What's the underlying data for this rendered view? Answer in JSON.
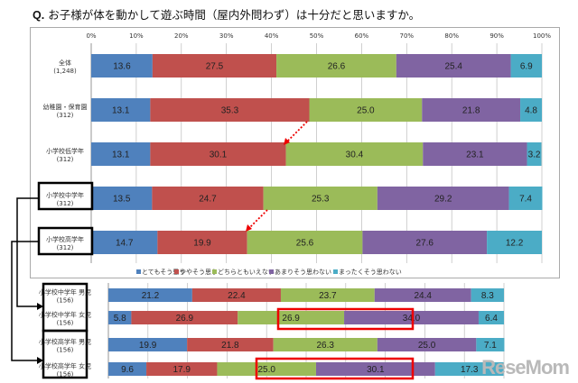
{
  "title_prefix": "Q.",
  "title": "お子様が体を動かして遊ぶ時間（屋内外問わず）は十分だと思いますか。",
  "watermark": "ReseMom",
  "colors": [
    "#4f81bd",
    "#c0504d",
    "#9bbb59",
    "#8064a2",
    "#4bacc6"
  ],
  "chart_data": [
    {
      "type": "bar",
      "orientation": "horizontal",
      "stacked": true,
      "xlim": [
        0,
        100
      ],
      "tick_labels": [
        "0%",
        "10%",
        "20%",
        "30%",
        "40%",
        "50%",
        "60%",
        "70%",
        "80%",
        "90%",
        "100%"
      ],
      "grid": true,
      "legend_position": "bottom",
      "legend": [
        "とてもそう思う",
        "ややそう思う",
        "どちらともいえない",
        "あまりそう思わない",
        "まったくそう思わない"
      ],
      "categories": [
        {
          "label": "全体",
          "n": "(1,248)"
        },
        {
          "label": "幼稚園・保育園",
          "n": "(312)"
        },
        {
          "label": "小学校低学年",
          "n": "(312)"
        },
        {
          "label": "小学校中学年",
          "n": "(312)"
        },
        {
          "label": "小学校高学年",
          "n": "(312)"
        }
      ],
      "values": [
        [
          13.6,
          27.5,
          26.6,
          25.4,
          6.9
        ],
        [
          13.1,
          35.3,
          25.0,
          21.8,
          4.8
        ],
        [
          13.1,
          30.1,
          30.4,
          23.1,
          3.2
        ],
        [
          13.5,
          24.7,
          25.3,
          29.2,
          7.4
        ],
        [
          14.7,
          19.9,
          25.6,
          27.6,
          12.2
        ]
      ]
    },
    {
      "type": "bar",
      "orientation": "horizontal",
      "stacked": true,
      "xlim": [
        0,
        100
      ],
      "grid": true,
      "categories": [
        {
          "label": "小学校中学年 男児",
          "n": "(156)"
        },
        {
          "label": "小学校中学年 女児",
          "n": "(156)"
        },
        {
          "label": "小学校高学年 男児",
          "n": "(156)"
        },
        {
          "label": "小学校高学年 女児",
          "n": "(156)"
        }
      ],
      "values": [
        [
          21.2,
          22.4,
          23.7,
          24.4,
          8.3
        ],
        [
          5.8,
          26.9,
          26.9,
          34.0,
          6.4
        ],
        [
          19.9,
          21.8,
          26.3,
          25.0,
          7.1
        ],
        [
          9.6,
          17.9,
          25.0,
          30.1,
          17.3
        ]
      ],
      "highlighted": "あまりそう思わない + まったくそう思わない (女児)"
    }
  ]
}
